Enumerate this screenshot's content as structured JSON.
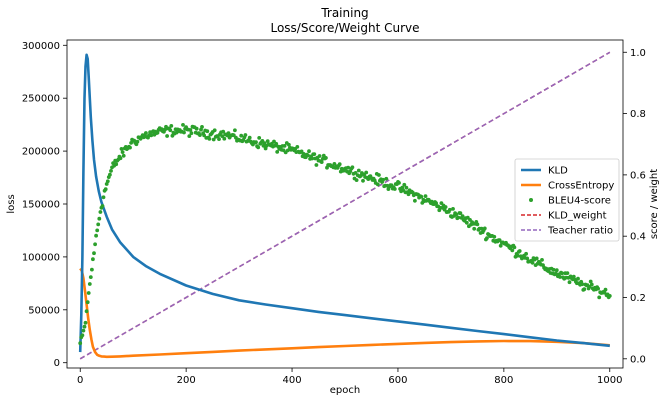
{
  "chart_data": {
    "type": "line",
    "title": "Training",
    "subtitle": "Loss/Score/Weight Curve",
    "xlabel": "epoch",
    "ylabel": "loss",
    "ylabel_right": "score / weight",
    "xlim": [
      -25,
      1025
    ],
    "ylim": [
      -5000,
      305000
    ],
    "ylim_right": [
      -0.03,
      1.04
    ],
    "xticks": [
      "0",
      "200",
      "400",
      "600",
      "800",
      "1000"
    ],
    "yticks": [
      "0",
      "50000",
      "100000",
      "150000",
      "200000",
      "250000",
      "300000"
    ],
    "yticks_right": [
      "0.0",
      "0.2",
      "0.4",
      "0.6",
      "0.8",
      "1.0"
    ],
    "legend_position": "center-right",
    "legend": [
      "KLD",
      "CrossEntropy",
      "BLEU4-score",
      "KLD_weight",
      "Teacher ratio"
    ],
    "series": [
      {
        "name": "KLD",
        "axis": "left",
        "style": "line",
        "color": "#1f77b4",
        "x": [
          0,
          2,
          4,
          6,
          8,
          10,
          12,
          14,
          16,
          18,
          20,
          23,
          26,
          30,
          35,
          40,
          50,
          60,
          75,
          100,
          125,
          150,
          200,
          250,
          300,
          350,
          400,
          450,
          500,
          550,
          600,
          650,
          700,
          750,
          800,
          850,
          900,
          950,
          1000
        ],
        "values": [
          10000,
          45000,
          100000,
          180000,
          250000,
          280000,
          291000,
          287000,
          270000,
          250000,
          232000,
          210000,
          192000,
          176000,
          162000,
          152000,
          138000,
          126000,
          114000,
          100000,
          91000,
          84000,
          73000,
          65000,
          59000,
          55000,
          51500,
          48000,
          45000,
          42000,
          39000,
          36000,
          33000,
          30000,
          27000,
          24000,
          21000,
          18500,
          16000
        ]
      },
      {
        "name": "CrossEntropy",
        "axis": "left",
        "style": "line",
        "color": "#ff7f0e",
        "x": [
          0,
          3,
          6,
          9,
          12,
          15,
          18,
          21,
          24,
          28,
          32,
          36,
          40,
          45,
          50,
          60,
          75,
          100,
          150,
          200,
          250,
          300,
          350,
          400,
          450,
          500,
          550,
          600,
          650,
          700,
          750,
          800,
          850,
          900,
          950,
          1000
        ],
        "values": [
          89000,
          87000,
          80000,
          68000,
          55000,
          42000,
          31000,
          22000,
          15000,
          10000,
          7500,
          6500,
          6000,
          5800,
          5600,
          5700,
          6000,
          6600,
          7800,
          9000,
          10200,
          11400,
          12600,
          13600,
          14800,
          15800,
          16800,
          17800,
          18700,
          19500,
          20100,
          20500,
          20400,
          19800,
          18500,
          16500
        ]
      },
      {
        "name": "BLEU4-score",
        "axis": "right",
        "style": "scatter",
        "color": "#2ca02c",
        "x": [
          0,
          5,
          10,
          15,
          20,
          25,
          30,
          40,
          50,
          60,
          75,
          100,
          125,
          150,
          175,
          200,
          225,
          250,
          275,
          300,
          325,
          350,
          375,
          400,
          425,
          450,
          475,
          500,
          525,
          550,
          575,
          600,
          625,
          650,
          675,
          700,
          725,
          750,
          775,
          800,
          825,
          850,
          875,
          900,
          925,
          950,
          975,
          1000
        ],
        "values": [
          0.05,
          0.08,
          0.12,
          0.2,
          0.27,
          0.33,
          0.4,
          0.5,
          0.57,
          0.62,
          0.66,
          0.71,
          0.73,
          0.74,
          0.745,
          0.745,
          0.74,
          0.735,
          0.73,
          0.72,
          0.71,
          0.7,
          0.69,
          0.68,
          0.665,
          0.65,
          0.635,
          0.62,
          0.605,
          0.59,
          0.575,
          0.56,
          0.54,
          0.52,
          0.5,
          0.48,
          0.455,
          0.43,
          0.4,
          0.375,
          0.35,
          0.325,
          0.3,
          0.28,
          0.26,
          0.24,
          0.225,
          0.21
        ],
        "noise": 0.025
      },
      {
        "name": "KLD_weight",
        "axis": "right",
        "style": "dashed",
        "color": "#d62728",
        "x": [
          0,
          1000
        ],
        "values": [
          0.0,
          1.0
        ]
      },
      {
        "name": "Teacher ratio",
        "axis": "right",
        "style": "dashed",
        "color": "#9467bd",
        "x": [
          0,
          1000
        ],
        "values": [
          0.0,
          1.0
        ]
      }
    ]
  }
}
